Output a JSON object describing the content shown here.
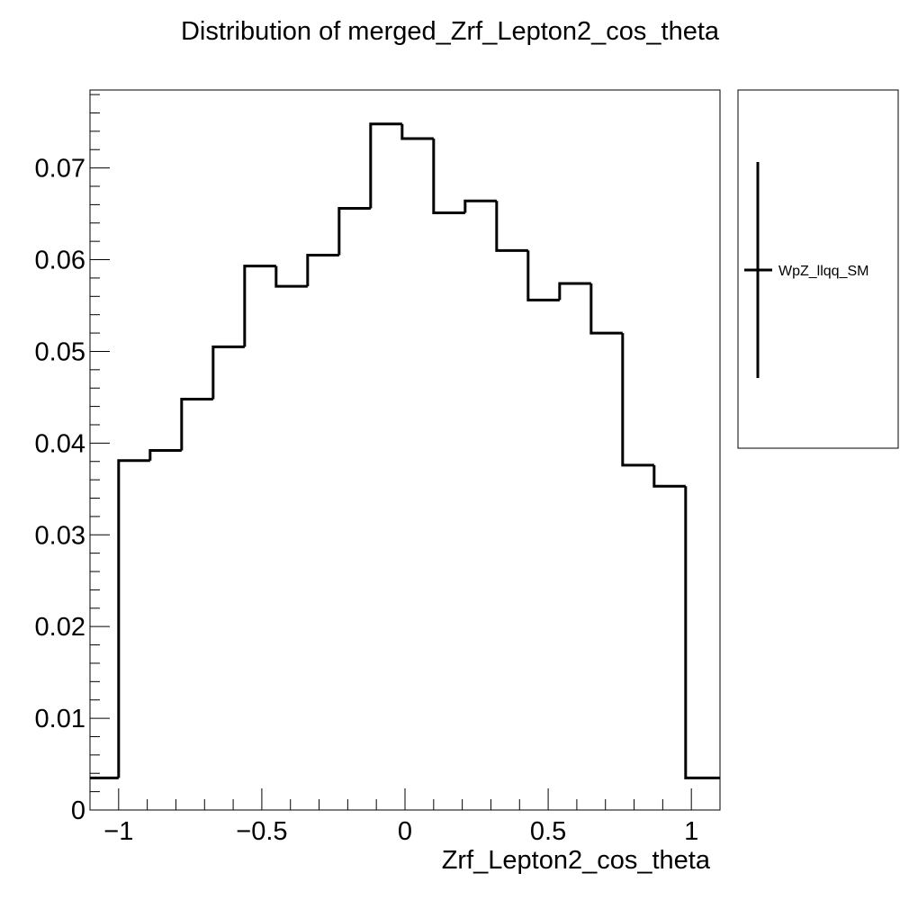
{
  "chart_data": {
    "type": "histogram",
    "title": "Distribution of merged_Zrf_Lepton2_cos_theta",
    "xlabel": "Zrf_Lepton2_cos_theta",
    "ylabel": "",
    "xlim": [
      -1.1,
      1.1
    ],
    "ylim": [
      0,
      0.0785
    ],
    "x_ticks": [
      {
        "value": -1,
        "label": "−1"
      },
      {
        "value": -0.5,
        "label": "−0.5"
      },
      {
        "value": 0,
        "label": "0"
      },
      {
        "value": 0.5,
        "label": "0.5"
      },
      {
        "value": 1,
        "label": "1"
      }
    ],
    "y_ticks": [
      {
        "value": 0,
        "label": "0"
      },
      {
        "value": 0.01,
        "label": "0.01"
      },
      {
        "value": 0.02,
        "label": "0.02"
      },
      {
        "value": 0.03,
        "label": "0.03"
      },
      {
        "value": 0.04,
        "label": "0.04"
      },
      {
        "value": 0.05,
        "label": "0.05"
      },
      {
        "value": 0.06,
        "label": "0.06"
      },
      {
        "value": 0.07,
        "label": "0.07"
      }
    ],
    "bin_edges": [
      -1.1,
      -1.0,
      -0.89,
      -0.78,
      -0.67,
      -0.56,
      -0.45,
      -0.34,
      -0.23,
      -0.12,
      -0.01,
      0.1,
      0.21,
      0.32,
      0.43,
      0.54,
      0.65,
      0.76,
      0.87,
      0.98,
      1.1
    ],
    "series": [
      {
        "name": "WpZ_llqq_SM",
        "values": [
          0.0035,
          0.0381,
          0.0392,
          0.0448,
          0.0505,
          0.0593,
          0.0571,
          0.0605,
          0.0656,
          0.0748,
          0.0732,
          0.0651,
          0.0664,
          0.061,
          0.0556,
          0.0574,
          0.052,
          0.0376,
          0.0353,
          0.0035
        ]
      }
    ],
    "legend": {
      "position": "right",
      "entries": [
        "WpZ_llqq_SM"
      ]
    },
    "grid": false
  }
}
